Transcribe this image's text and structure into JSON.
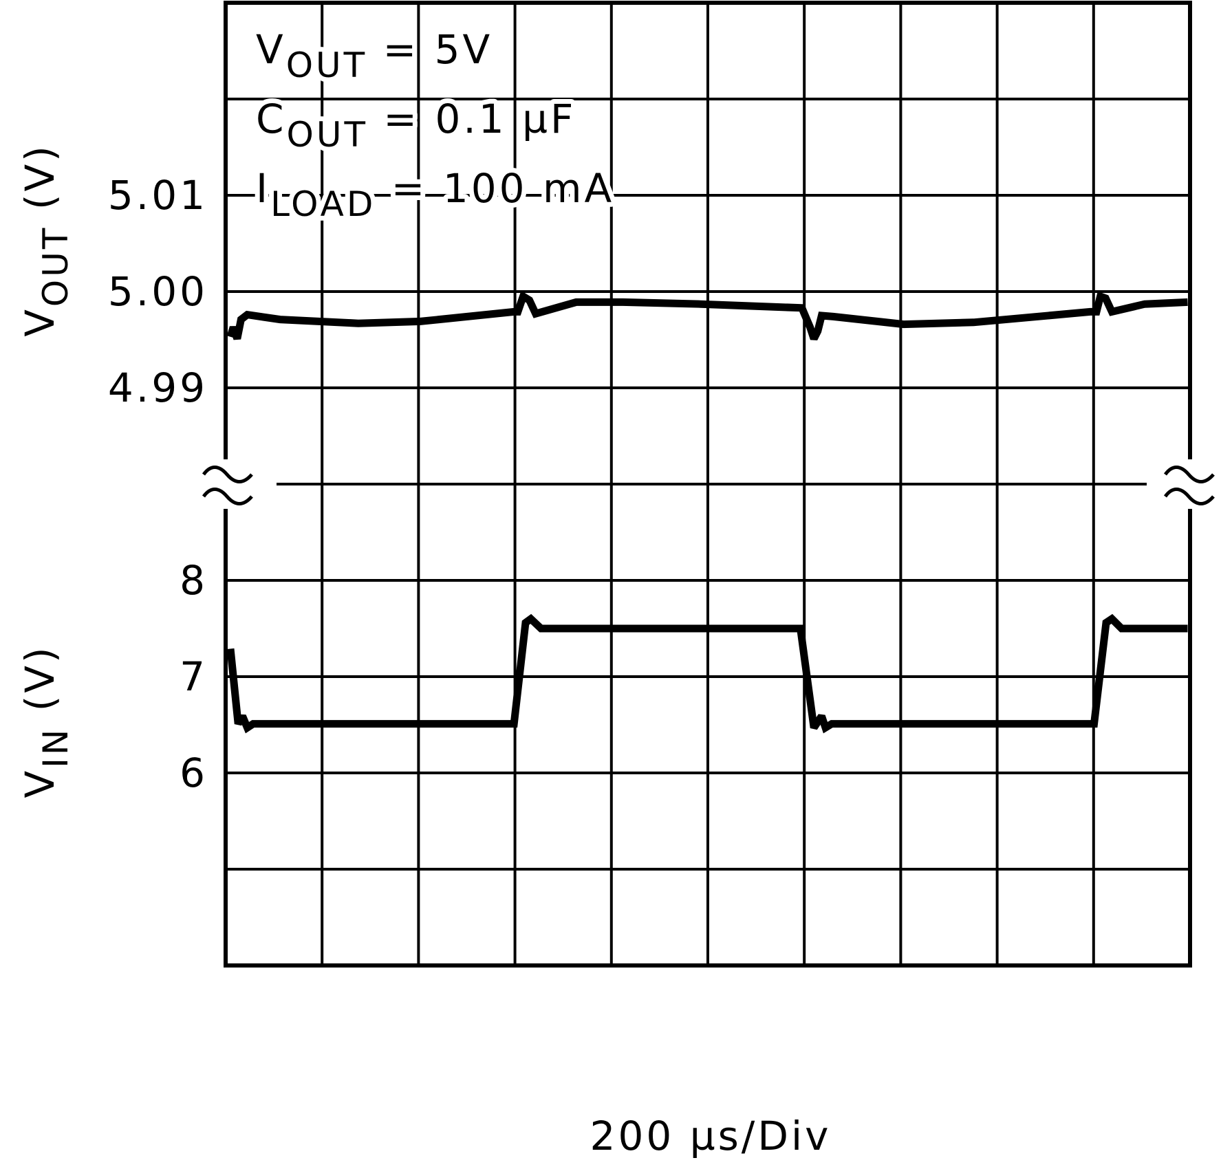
{
  "chart_data": [
    {
      "type": "line",
      "ylabel": {
        "text": "V",
        "sub": "OUT",
        "rest": " (V)"
      },
      "annotations": [
        {
          "text": "V",
          "sub": "OUT",
          "rest": " = 5V"
        },
        {
          "text": "C",
          "sub": "OUT",
          "rest": " = 0.1 µF"
        },
        {
          "text": "I",
          "sub": "LOAD",
          "rest": " = 100 mA"
        }
      ],
      "xlim": [
        0,
        2000
      ],
      "xticks": [
        0,
        200,
        400,
        600,
        800,
        1000,
        1200,
        1400,
        1600,
        1800,
        2000
      ],
      "ylim": [
        4.98,
        5.03
      ],
      "yticks": [
        4.99,
        {
          "value": 5,
          "label": "5.00"
        },
        5.01
      ],
      "ygrid": [
        4.98,
        4.99,
        5,
        5.01,
        5.02,
        5.03
      ],
      "grid": true,
      "series": [
        {
          "color": "#000000",
          "x": [
            10,
            16,
            24,
            32,
            45,
            113,
            275,
            404,
            598,
            606,
            617,
            630,
            643,
            727,
            824,
            985,
            1195,
            1212,
            1220,
            1228,
            1236,
            1260,
            1406,
            1551,
            1793,
            1806,
            1814,
            1825,
            1838,
            1906,
            1995
          ],
          "values": [
            4.9953,
            4.9963,
            4.9951,
            4.9971,
            4.9976,
            4.9971,
            4.9967,
            4.9969,
            4.9979,
            4.9979,
            4.9995,
            4.9991,
            4.9977,
            4.9989,
            4.9989,
            4.9987,
            4.9983,
            4.9963,
            4.9951,
            4.9959,
            4.9975,
            4.9974,
            4.9966,
            4.9968,
            4.9979,
            4.9979,
            4.9995,
            4.9993,
            4.9979,
            4.9987,
            4.9989
          ]
        }
      ]
    },
    {
      "type": "line",
      "ylabel": {
        "text": "V",
        "sub": "IN",
        "rest": " (V)"
      },
      "xlabel": "200 µs/Div",
      "xlim": [
        0,
        2000
      ],
      "xticks": [
        0,
        200,
        400,
        600,
        800,
        1000,
        1200,
        1400,
        1600,
        1800,
        2000
      ],
      "ylim": [
        4,
        9
      ],
      "yticks": [
        6,
        7,
        8
      ],
      "ygrid": [
        4,
        5,
        6,
        7,
        8,
        9
      ],
      "grid": true,
      "series": [
        {
          "color": "#000000",
          "x": [
            10,
            26,
            35,
            45,
            57,
            598,
            622,
            633,
            654,
            1192,
            1220,
            1236,
            1244,
            1257,
            1801,
            1826,
            1838,
            1858,
            1995
          ],
          "values": [
            7.29,
            6.51,
            6.59,
            6.47,
            6.51,
            6.51,
            7.56,
            7.6,
            7.5,
            7.5,
            6.47,
            6.59,
            6.47,
            6.51,
            6.51,
            7.56,
            7.6,
            7.5,
            7.5
          ]
        }
      ]
    }
  ]
}
